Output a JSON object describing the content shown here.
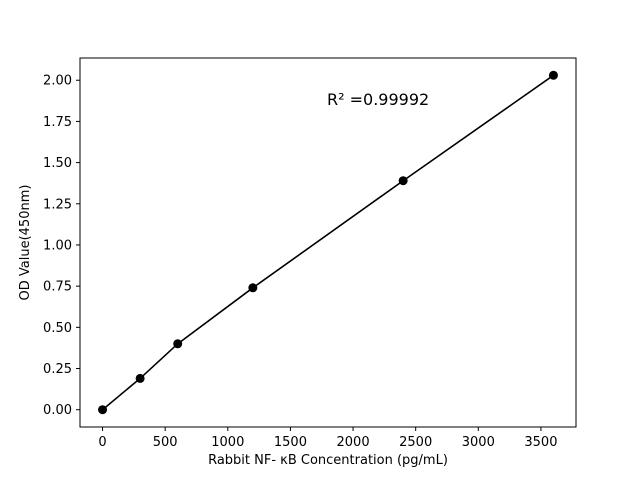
{
  "figure": {
    "background": "#ffffff"
  },
  "chart_data": {
    "type": "scatter",
    "title": "",
    "xlabel": "Rabbit NF- κB Concentration (pg/mL)",
    "ylabel": "OD Value(450nm)",
    "x": [
      0,
      300,
      600,
      1200,
      2400,
      3600
    ],
    "y": [
      0.0,
      0.19,
      0.4,
      0.74,
      1.39,
      2.03
    ],
    "xlim": [
      -180,
      3780
    ],
    "ylim": [
      -0.105,
      2.135
    ],
    "xticks": {
      "values": [
        0,
        500,
        1000,
        1500,
        2000,
        2500,
        3000,
        3500
      ],
      "labels": [
        "0",
        "500",
        "1000",
        "1500",
        "2000",
        "2500",
        "3000",
        "3500"
      ]
    },
    "yticks": {
      "values": [
        0.0,
        0.25,
        0.5,
        0.75,
        1.0,
        1.25,
        1.5,
        1.75,
        2.0
      ],
      "labels": [
        "0.00",
        "0.25",
        "0.50",
        "0.75",
        "1.00",
        "1.25",
        "1.50",
        "1.75",
        "2.00"
      ]
    },
    "annotation": {
      "text": "R² =0.99992",
      "x": 2200,
      "y": 1.85
    },
    "line_color": "#000000",
    "marker_color": "#000000",
    "grid": false,
    "legend": null
  }
}
